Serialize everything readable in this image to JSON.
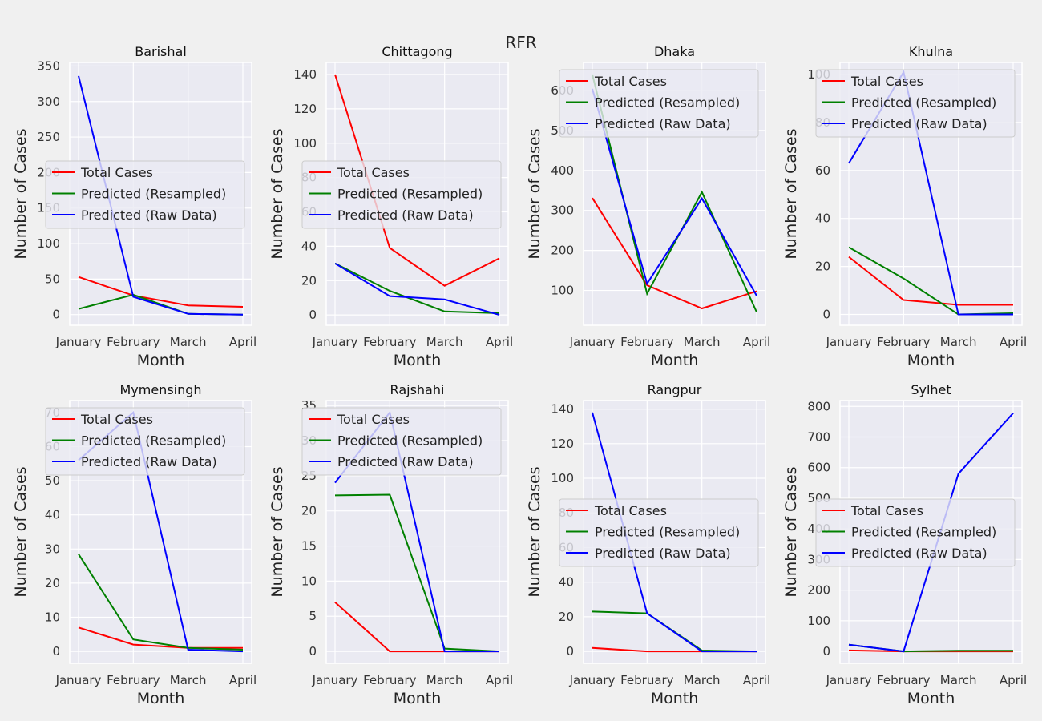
{
  "suptitle": "RFR",
  "chart_data": [
    {
      "type": "line",
      "title": "Barishal",
      "xlabel": "Month",
      "ylabel": "Number of Cases",
      "categories": [
        "January",
        "February",
        "March",
        "April"
      ],
      "ylim": [
        -15,
        355
      ],
      "yticks": [
        0,
        50,
        100,
        150,
        200,
        250,
        300,
        350
      ],
      "legend": "center-left",
      "series": [
        {
          "name": "Total Cases",
          "color": "#ff0000",
          "values": [
            53,
            27,
            13,
            11
          ]
        },
        {
          "name": "Predicted (Resampled)",
          "color": "#008000",
          "values": [
            8,
            28,
            1,
            0
          ]
        },
        {
          "name": "Predicted (Raw Data)",
          "color": "#0000ff",
          "values": [
            336,
            25,
            1,
            0
          ]
        }
      ]
    },
    {
      "type": "line",
      "title": "Chittagong",
      "xlabel": "Month",
      "ylabel": "Number of Cases",
      "categories": [
        "January",
        "February",
        "March",
        "April"
      ],
      "ylim": [
        -6,
        147
      ],
      "yticks": [
        0,
        20,
        40,
        60,
        80,
        100,
        120,
        140
      ],
      "legend": "center-left",
      "series": [
        {
          "name": "Total Cases",
          "color": "#ff0000",
          "values": [
            140,
            39,
            17,
            33
          ]
        },
        {
          "name": "Predicted (Resampled)",
          "color": "#008000",
          "values": [
            30,
            14,
            2,
            1
          ]
        },
        {
          "name": "Predicted (Raw Data)",
          "color": "#0000ff",
          "values": [
            30,
            11,
            9,
            0
          ]
        }
      ]
    },
    {
      "type": "line",
      "title": "Dhaka",
      "xlabel": "Month",
      "ylabel": "Number of Cases",
      "categories": [
        "January",
        "February",
        "March",
        "April"
      ],
      "ylim": [
        13,
        670
      ],
      "yticks": [
        100,
        200,
        300,
        400,
        500,
        600
      ],
      "legend": "upper-left",
      "series": [
        {
          "name": "Total Cases",
          "color": "#ff0000",
          "values": [
            331,
            113,
            55,
            98
          ]
        },
        {
          "name": "Predicted (Resampled)",
          "color": "#008000",
          "values": [
            640,
            92,
            346,
            46
          ]
        },
        {
          "name": "Predicted (Raw Data)",
          "color": "#0000ff",
          "values": [
            604,
            117,
            330,
            87
          ]
        }
      ]
    },
    {
      "type": "line",
      "title": "Khulna",
      "xlabel": "Month",
      "ylabel": "Number of Cases",
      "categories": [
        "January",
        "February",
        "March",
        "April"
      ],
      "ylim": [
        -4.5,
        105
      ],
      "yticks": [
        0,
        20,
        40,
        60,
        80,
        100
      ],
      "legend": "upper-left",
      "series": [
        {
          "name": "Total Cases",
          "color": "#ff0000",
          "values": [
            24,
            6,
            4,
            4
          ]
        },
        {
          "name": "Predicted (Resampled)",
          "color": "#008000",
          "values": [
            28,
            15,
            0,
            0.5
          ]
        },
        {
          "name": "Predicted (Raw Data)",
          "color": "#0000ff",
          "values": [
            63,
            101,
            0,
            0
          ]
        }
      ]
    },
    {
      "type": "line",
      "title": "Mymensingh",
      "xlabel": "Month",
      "ylabel": "Number of Cases",
      "categories": [
        "January",
        "February",
        "March",
        "April"
      ],
      "ylim": [
        -3.5,
        73.5
      ],
      "yticks": [
        0,
        10,
        20,
        30,
        40,
        50,
        60,
        70
      ],
      "legend": "upper-left",
      "series": [
        {
          "name": "Total Cases",
          "color": "#ff0000",
          "values": [
            7,
            2,
            1,
            1
          ]
        },
        {
          "name": "Predicted (Resampled)",
          "color": "#008000",
          "values": [
            28.5,
            3.5,
            1,
            0.5
          ]
        },
        {
          "name": "Predicted (Raw Data)",
          "color": "#0000ff",
          "values": [
            56,
            70,
            0.5,
            0
          ]
        }
      ]
    },
    {
      "type": "line",
      "title": "Rajshahi",
      "xlabel": "Month",
      "ylabel": "Number of Cases",
      "categories": [
        "January",
        "February",
        "March",
        "April"
      ],
      "ylim": [
        -1.7,
        35.7
      ],
      "yticks": [
        0,
        5,
        10,
        15,
        20,
        25,
        30,
        35
      ],
      "legend": "upper-left",
      "series": [
        {
          "name": "Total Cases",
          "color": "#ff0000",
          "values": [
            7,
            0,
            0,
            0
          ]
        },
        {
          "name": "Predicted (Resampled)",
          "color": "#008000",
          "values": [
            22.2,
            22.3,
            0.4,
            0
          ]
        },
        {
          "name": "Predicted (Raw Data)",
          "color": "#0000ff",
          "values": [
            24,
            34,
            0,
            0
          ]
        }
      ]
    },
    {
      "type": "line",
      "title": "Rangpur",
      "xlabel": "Month",
      "ylabel": "Number of Cases",
      "categories": [
        "January",
        "February",
        "March",
        "April"
      ],
      "ylim": [
        -6.9,
        144.9
      ],
      "yticks": [
        0,
        20,
        40,
        60,
        80,
        100,
        120,
        140
      ],
      "legend": "center-left",
      "series": [
        {
          "name": "Total Cases",
          "color": "#ff0000",
          "values": [
            2,
            0,
            0,
            0
          ]
        },
        {
          "name": "Predicted (Resampled)",
          "color": "#008000",
          "values": [
            23,
            22,
            0.5,
            0
          ]
        },
        {
          "name": "Predicted (Raw Data)",
          "color": "#0000ff",
          "values": [
            138,
            22,
            0,
            0
          ]
        }
      ]
    },
    {
      "type": "line",
      "title": "Sylhet",
      "xlabel": "Month",
      "ylabel": "Number of Cases",
      "categories": [
        "January",
        "February",
        "March",
        "April"
      ],
      "ylim": [
        -39,
        819
      ],
      "yticks": [
        0,
        100,
        200,
        300,
        400,
        500,
        600,
        700,
        800
      ],
      "legend": "center-left",
      "series": [
        {
          "name": "Total Cases",
          "color": "#ff0000",
          "values": [
            3,
            0,
            0,
            0
          ]
        },
        {
          "name": "Predicted (Resampled)",
          "color": "#008000",
          "values": [
            22,
            0,
            2,
            2
          ]
        },
        {
          "name": "Predicted (Raw Data)",
          "color": "#0000ff",
          "values": [
            22,
            0,
            580,
            778
          ]
        }
      ]
    }
  ]
}
